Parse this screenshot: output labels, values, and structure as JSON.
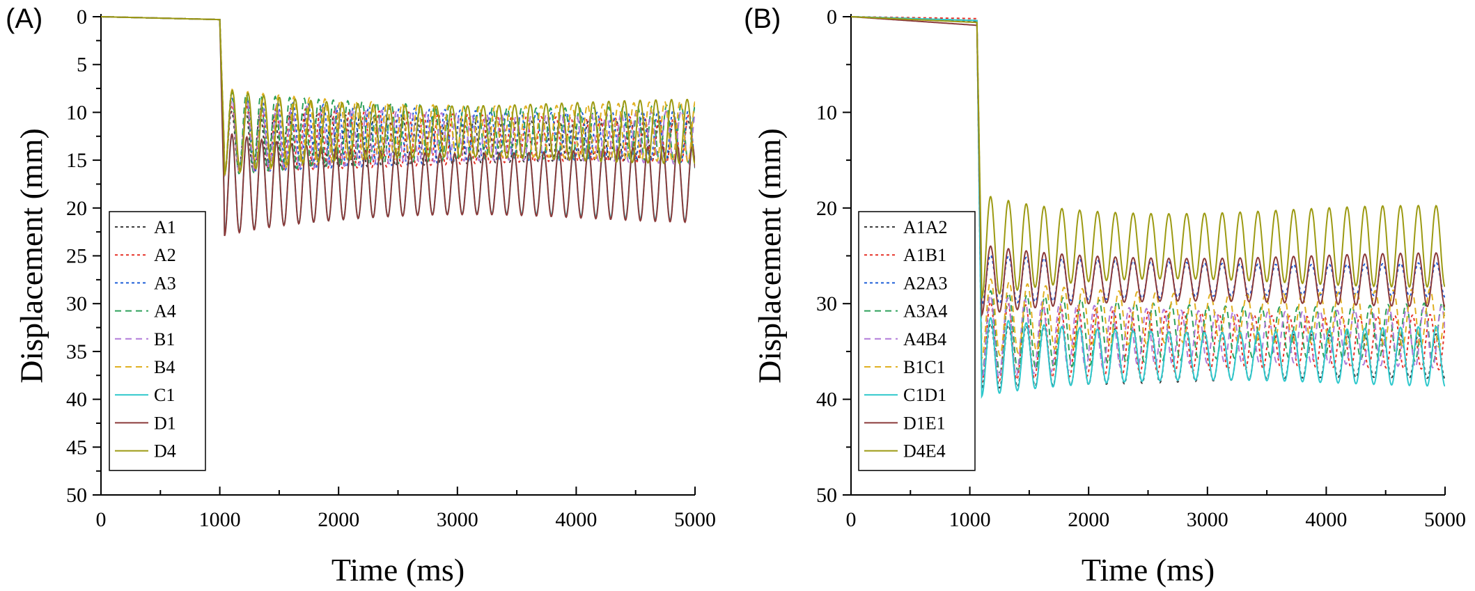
{
  "chart_data": [
    {
      "type": "line",
      "panel_label": "(A)",
      "xlabel": "Time (ms)",
      "ylabel": "Displacement (mm)",
      "xlim": [
        0,
        5000
      ],
      "ylim": [
        0,
        50
      ],
      "y_inverted": true,
      "x_ticks": [
        0,
        1000,
        2000,
        3000,
        4000,
        5000
      ],
      "y_ticks": [
        0,
        5,
        10,
        15,
        20,
        25,
        30,
        35,
        40,
        45,
        50
      ],
      "legend_position": "left",
      "grid": false,
      "series": [
        {
          "name": "A1",
          "color": "#3d3d3d",
          "dash": "dot",
          "drop_at": 1000,
          "pre_end": 0.3,
          "center": 13.0,
          "amp": 2.3,
          "period": 120,
          "phase": 0.1,
          "x": [
            0,
            1000,
            1100,
            2000,
            3000,
            4000,
            5000
          ],
          "y": [
            0,
            0.3,
            14.5,
            13.5,
            13.0,
            13.0,
            13.0
          ]
        },
        {
          "name": "A2",
          "color": "#e63228",
          "dash": "dot",
          "drop_at": 1000,
          "pre_end": 0.3,
          "center": 12.8,
          "amp": 2.6,
          "period": 124,
          "phase": 0.35,
          "x": [
            0,
            1000,
            1100,
            2000,
            3000,
            4000,
            5000
          ],
          "y": [
            0,
            0.3,
            14.5,
            13.0,
            12.8,
            12.8,
            12.8
          ]
        },
        {
          "name": "A3",
          "color": "#1f5fd8",
          "dash": "dot",
          "drop_at": 1000,
          "pre_end": 0.3,
          "center": 12.5,
          "amp": 2.8,
          "period": 128,
          "phase": 0.6,
          "x": [
            0,
            1000,
            1100,
            2000,
            3000,
            4000,
            5000
          ],
          "y": [
            0,
            0.3,
            14.5,
            13.0,
            12.5,
            12.5,
            12.5
          ]
        },
        {
          "name": "A4",
          "color": "#2ca05a",
          "dash": "dash",
          "drop_at": 1000,
          "pre_end": 0.3,
          "center": 12.2,
          "amp": 3.0,
          "period": 122,
          "phase": 0.85,
          "x": [
            0,
            1000,
            1100,
            2000,
            3000,
            4000,
            5000
          ],
          "y": [
            0,
            0.3,
            14.5,
            12.5,
            12.2,
            12.2,
            12.2
          ]
        },
        {
          "name": "B1",
          "color": "#b07ad8",
          "dash": "dash",
          "drop_at": 1000,
          "pre_end": 0.3,
          "center": 12.6,
          "amp": 2.7,
          "period": 126,
          "phase": 1.1,
          "x": [
            0,
            1000,
            1100,
            2000,
            3000,
            4000,
            5000
          ],
          "y": [
            0,
            0.3,
            14.5,
            13.0,
            12.6,
            12.6,
            12.6
          ]
        },
        {
          "name": "B4",
          "color": "#e0b021",
          "dash": "dash",
          "drop_at": 1000,
          "pre_end": 0.3,
          "center": 12.0,
          "amp": 3.0,
          "period": 130,
          "phase": 1.35,
          "x": [
            0,
            1000,
            1100,
            2000,
            3000,
            4000,
            5000
          ],
          "y": [
            0,
            0.3,
            14.5,
            12.2,
            12.0,
            12.0,
            12.0
          ]
        },
        {
          "name": "C1",
          "color": "#2ec8cc",
          "dash": "solid",
          "drop_at": 1000,
          "pre_end": 0.3,
          "center": 17.5,
          "amp": 3.5,
          "period": 125,
          "phase": 1.6,
          "x": [
            0,
            1000,
            1100,
            2000,
            3000,
            4000,
            5000
          ],
          "y": [
            0,
            0.3,
            17.0,
            17.5,
            17.5,
            17.5,
            17.5
          ]
        },
        {
          "name": "D1",
          "color": "#8b3a3a",
          "dash": "solid",
          "drop_at": 1000,
          "pre_end": 0.3,
          "center": 17.5,
          "amp": 3.6,
          "period": 125,
          "phase": 1.85,
          "x": [
            0,
            1000,
            1100,
            2000,
            3000,
            4000,
            5000
          ],
          "y": [
            0,
            0.3,
            17.0,
            17.5,
            17.5,
            17.5,
            17.5
          ]
        },
        {
          "name": "D4",
          "color": "#9c9a12",
          "dash": "solid",
          "drop_at": 1000,
          "pre_end": 0.3,
          "center": 12.0,
          "amp": 3.0,
          "period": 132,
          "phase": 2.1,
          "x": [
            0,
            1000,
            1100,
            2000,
            3000,
            4000,
            5000
          ],
          "y": [
            0,
            0.3,
            13.5,
            12.0,
            12.0,
            12.0,
            12.0
          ]
        }
      ]
    },
    {
      "type": "line",
      "panel_label": "(B)",
      "xlabel": "Time (ms)",
      "ylabel": "Displacement (mm)",
      "xlim": [
        0,
        5000
      ],
      "ylim": [
        0,
        50
      ],
      "y_inverted": true,
      "x_ticks": [
        0,
        1000,
        2000,
        3000,
        4000,
        5000
      ],
      "y_ticks": [
        0,
        10,
        20,
        30,
        40,
        50
      ],
      "legend_position": "left",
      "grid": false,
      "series": [
        {
          "name": "A1A2",
          "color": "#3d3d3d",
          "dash": "dot",
          "drop_at": 1060,
          "pre_end": 0.5,
          "center": 35.5,
          "amp": 2.5,
          "period": 150,
          "phase": 0.2,
          "x": [
            0,
            1060,
            1200,
            2000,
            3000,
            4000,
            5000
          ],
          "y": [
            0,
            0.5,
            38.0,
            35.0,
            35.5,
            35.5,
            35.5
          ]
        },
        {
          "name": "A1B1",
          "color": "#e63228",
          "dash": "dot",
          "drop_at": 1060,
          "pre_end": 0.2,
          "center": 34.0,
          "amp": 3.0,
          "period": 148,
          "phase": 0.5,
          "x": [
            0,
            1060,
            1200,
            2000,
            3000,
            4000,
            5000
          ],
          "y": [
            0,
            0.2,
            36.0,
            34.0,
            34.0,
            34.0,
            34.0
          ]
        },
        {
          "name": "A2A3",
          "color": "#1f5fd8",
          "dash": "dot",
          "drop_at": 1060,
          "pre_end": 0.4,
          "center": 27.5,
          "amp": 1.8,
          "period": 150,
          "phase": 0.8,
          "x": [
            0,
            1060,
            1200,
            2000,
            3000,
            4000,
            5000
          ],
          "y": [
            0,
            0.4,
            32.0,
            28.0,
            27.5,
            27.5,
            27.5
          ]
        },
        {
          "name": "A3A4",
          "color": "#2ca05a",
          "dash": "dash",
          "drop_at": 1060,
          "pre_end": 0.4,
          "center": 33.0,
          "amp": 3.0,
          "period": 152,
          "phase": 1.1,
          "x": [
            0,
            1060,
            1200,
            2000,
            3000,
            4000,
            5000
          ],
          "y": [
            0,
            0.4,
            35.0,
            33.0,
            33.0,
            33.0,
            33.0
          ]
        },
        {
          "name": "A4B4",
          "color": "#b07ad8",
          "dash": "dash",
          "drop_at": 1060,
          "pre_end": 0.4,
          "center": 33.5,
          "amp": 3.0,
          "period": 146,
          "phase": 1.4,
          "x": [
            0,
            1060,
            1200,
            2000,
            3000,
            4000,
            5000
          ],
          "y": [
            0,
            0.4,
            35.0,
            33.5,
            33.5,
            33.5,
            33.5
          ]
        },
        {
          "name": "B1C1",
          "color": "#e0b021",
          "dash": "dash",
          "drop_at": 1060,
          "pre_end": 0.4,
          "center": 31.5,
          "amp": 2.8,
          "period": 154,
          "phase": 1.7,
          "x": [
            0,
            1060,
            1200,
            2000,
            3000,
            4000,
            5000
          ],
          "y": [
            0,
            0.4,
            33.0,
            31.5,
            31.5,
            31.5,
            31.5
          ]
        },
        {
          "name": "C1D1",
          "color": "#2ec8cc",
          "dash": "solid",
          "drop_at": 1060,
          "pre_end": 0.4,
          "center": 35.5,
          "amp": 2.8,
          "period": 150,
          "phase": 2.0,
          "x": [
            0,
            1060,
            1200,
            2000,
            3000,
            4000,
            5000
          ],
          "y": [
            0,
            0.4,
            37.0,
            35.5,
            35.5,
            35.5,
            35.5
          ]
        },
        {
          "name": "D1E1",
          "color": "#8b3a3a",
          "dash": "solid",
          "drop_at": 1060,
          "pre_end": 0.9,
          "center": 27.5,
          "amp": 2.5,
          "period": 150,
          "phase": 2.3,
          "x": [
            0,
            1060,
            1200,
            2000,
            3000,
            4000,
            5000
          ],
          "y": [
            0,
            0.9,
            30.0,
            27.5,
            27.5,
            27.5,
            27.5
          ]
        },
        {
          "name": "D4E4",
          "color": "#9c9a12",
          "dash": "solid",
          "drop_at": 1060,
          "pre_end": 0.6,
          "center": 24.0,
          "amp": 3.8,
          "period": 150,
          "phase": 2.6,
          "x": [
            0,
            1060,
            1200,
            2000,
            3000,
            4000,
            5000
          ],
          "y": [
            0,
            0.6,
            27.0,
            24.0,
            24.0,
            24.0,
            24.0
          ]
        }
      ]
    }
  ]
}
